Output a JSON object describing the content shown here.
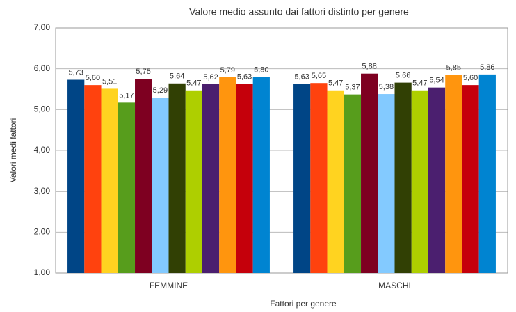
{
  "chart_data": {
    "type": "bar",
    "title": "Valore medio assunto dai fattori distinto per genere",
    "x_label": "Fattori per genere",
    "y_label": "Valori medi fattori",
    "categories": [
      "FEMMINE",
      "MASCHI"
    ],
    "series": [
      {
        "color": "#004586",
        "values": [
          5.73,
          5.63
        ],
        "value_labels": [
          "5,73",
          "5,63"
        ]
      },
      {
        "color": "#ff420e",
        "values": [
          5.6,
          5.65
        ],
        "value_labels": [
          "5,60",
          "5,65"
        ]
      },
      {
        "color": "#ffd320",
        "values": [
          5.51,
          5.47
        ],
        "value_labels": [
          "5,51",
          "5,47"
        ]
      },
      {
        "color": "#579d1c",
        "values": [
          5.17,
          5.37
        ],
        "value_labels": [
          "5,17",
          "5,37"
        ]
      },
      {
        "color": "#7e0021",
        "values": [
          5.75,
          5.88
        ],
        "value_labels": [
          "5,75",
          "5,88"
        ]
      },
      {
        "color": "#83caff",
        "values": [
          5.29,
          5.38
        ],
        "value_labels": [
          "5,29",
          "5,38"
        ]
      },
      {
        "color": "#314004",
        "values": [
          5.64,
          5.66
        ],
        "value_labels": [
          "5,64",
          "5,66"
        ]
      },
      {
        "color": "#aecf00",
        "values": [
          5.47,
          5.47
        ],
        "value_labels": [
          "5,47",
          "5,47"
        ]
      },
      {
        "color": "#4b1f6f",
        "values": [
          5.62,
          5.54
        ],
        "value_labels": [
          "5,62",
          "5,54"
        ]
      },
      {
        "color": "#ff950e",
        "values": [
          5.79,
          5.85
        ],
        "value_labels": [
          "5,79",
          "5,85"
        ]
      },
      {
        "color": "#c5000b",
        "values": [
          5.63,
          5.6
        ],
        "value_labels": [
          "5,63",
          "5,60"
        ]
      },
      {
        "color": "#0084d1",
        "values": [
          5.8,
          5.86
        ],
        "value_labels": [
          "5,80",
          "5,86"
        ]
      }
    ],
    "ylim": [
      1,
      7
    ],
    "yticks": [
      {
        "value": 1,
        "label": "1,00"
      },
      {
        "value": 2,
        "label": "2,00"
      },
      {
        "value": 3,
        "label": "3,00"
      },
      {
        "value": 4,
        "label": "4,00"
      },
      {
        "value": 5,
        "label": "5,00"
      },
      {
        "value": 6,
        "label": "6,00"
      },
      {
        "value": 7,
        "label": "7,00"
      }
    ],
    "grid": true
  }
}
